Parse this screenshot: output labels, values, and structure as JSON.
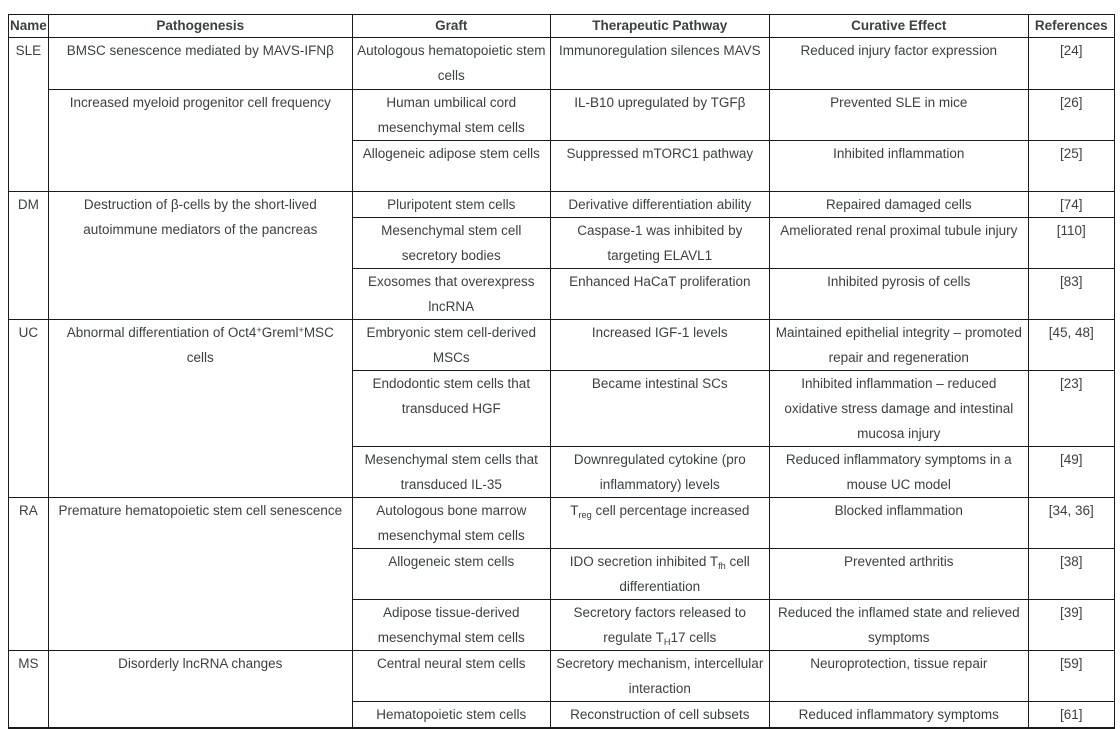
{
  "page": {
    "background_color": "#ffffff",
    "text_color": "#3c4043",
    "border_color": "#1a1a1a"
  },
  "table": {
    "headers": [
      "Name",
      "Pathogenesis",
      "Graft",
      "Therapeutic Pathway",
      "Curative Effect",
      "References"
    ],
    "groups": [
      {
        "name": "SLE",
        "rows": [
          {
            "pathogenesis": "BMSC senescence mediated by MAVS-IFNβ",
            "graft": "Autologous hematopoietic stem cells",
            "pathway": "Immunoregulation silences MAVS",
            "effect": "Reduced injury factor expression",
            "refs": "[24]"
          },
          {
            "pathogenesis": "Increased myeloid progenitor cell frequency",
            "graft": "Human umbilical cord mesenchymal stem cells",
            "pathway": "IL-B10 upregulated by TGFβ",
            "effect": "Prevented SLE in mice",
            "refs": "[26]"
          },
          {
            "graft": "Allogeneic adipose stem cells",
            "pathway": "Suppressed mTORC1 pathway",
            "effect": "Inhibited inflammation",
            "refs": "[25]"
          }
        ]
      },
      {
        "name": "DM",
        "rows": [
          {
            "pathogenesis": "Destruction of β-cells by the short-lived autoimmune mediators of the pancreas",
            "graft": "Pluripotent stem cells",
            "pathway": "Derivative differentiation ability",
            "effect": "Repaired damaged cells",
            "refs": "[74]"
          },
          {
            "graft": "Mesenchymal stem cell secretory bodies",
            "pathway": "Caspase-1 was inhibited by targeting ELAVL1",
            "effect": "Ameliorated renal proximal tubule injury",
            "refs": "[110]"
          },
          {
            "graft": "Exosomes that overexpress lncRNA",
            "pathway": "Enhanced HaCaT proliferation",
            "effect": "Inhibited pyrosis of cells",
            "refs": "[83]"
          }
        ]
      },
      {
        "name": "UC",
        "rows": [
          {
            "pathogenesis": "Abnormal differentiation of Oct4^{+}Greml^{+}MSC cells",
            "graft": "Embryonic stem cell-derived MSCs",
            "pathway": "Increased IGF-1 levels",
            "effect": "Maintained epithelial integrity – promoted repair and regeneration",
            "refs": "[45, 48]"
          },
          {
            "graft": "Endodontic stem cells that transduced HGF",
            "pathway": "Became intestinal SCs",
            "effect": "Inhibited inflammation – reduced oxidative stress damage and intestinal mucosa injury",
            "refs": "[23]"
          },
          {
            "graft": "Mesenchymal stem cells that transduced IL-35",
            "pathway": "Downregulated cytokine (pro inflammatory) levels",
            "effect": "Reduced inflammatory symptoms in a mouse UC model",
            "refs": "[49]"
          }
        ]
      },
      {
        "name": "RA",
        "rows": [
          {
            "pathogenesis": "Premature hematopoietic stem cell senescence",
            "graft": "Autologous bone marrow mesenchymal stem cells",
            "pathway": "T_{reg} cell percentage increased",
            "effect": "Blocked inflammation",
            "refs": "[34, 36]"
          },
          {
            "graft": "Allogeneic stem cells",
            "pathway": "IDO secretion inhibited T_{fh} cell differentiation",
            "effect": "Prevented arthritis",
            "refs": "[38]"
          },
          {
            "graft": "Adipose tissue-derived mesenchymal stem cells",
            "pathway": "Secretory factors released to regulate T_{H}17 cells",
            "effect": "Reduced the inflamed state and relieved symptoms",
            "refs": "[39]"
          }
        ]
      },
      {
        "name": "MS",
        "rows": [
          {
            "pathogenesis": "Disorderly lncRNA changes",
            "graft": "Central neural stem cells",
            "pathway": "Secretory mechanism, intercellular interaction",
            "effect": "Neuroprotection, tissue repair",
            "refs": "[59]"
          },
          {
            "graft": "Hematopoietic stem cells",
            "pathway": "Reconstruction of cell subsets",
            "effect": "Reduced inflammatory symptoms",
            "refs": "[61]"
          }
        ]
      }
    ]
  }
}
